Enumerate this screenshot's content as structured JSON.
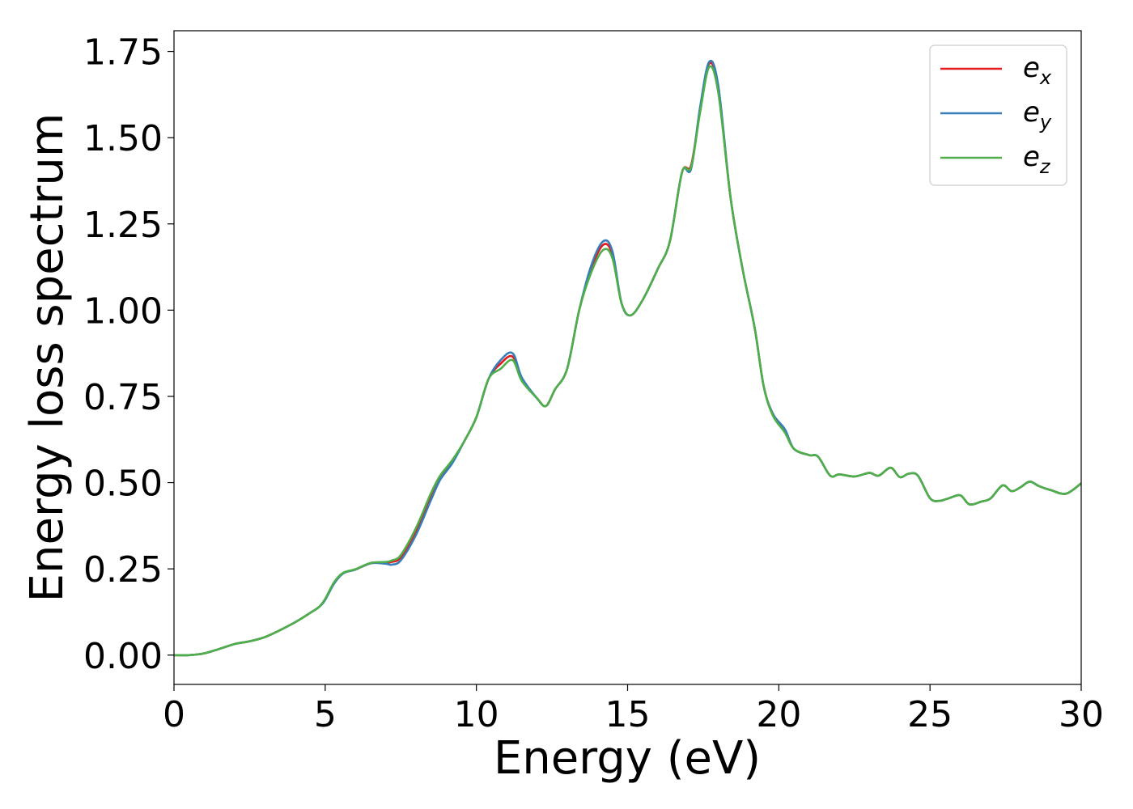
{
  "chart_data": {
    "type": "line",
    "title": "",
    "xlabel": "Energy (eV)",
    "ylabel": "Energy loss spectrum",
    "xlim": [
      0,
      30
    ],
    "ylim": [
      -0.085,
      1.81
    ],
    "xticks": [
      0,
      5,
      10,
      15,
      20,
      25,
      30
    ],
    "xtick_labels": [
      "0",
      "5",
      "10",
      "15",
      "20",
      "25",
      "30"
    ],
    "yticks": [
      0.0,
      0.25,
      0.5,
      0.75,
      1.0,
      1.25,
      1.5,
      1.75
    ],
    "ytick_labels": [
      "0.00",
      "0.25",
      "0.50",
      "0.75",
      "1.00",
      "1.25",
      "1.50",
      "1.75"
    ],
    "grid": false,
    "legend_position": "top-right",
    "x": [
      0,
      0.5,
      1,
      1.5,
      2,
      2.5,
      3,
      3.5,
      4,
      4.5,
      4.8,
      5,
      5.3,
      5.6,
      6,
      6.5,
      7,
      7.2,
      7.5,
      8,
      8.5,
      8.8,
      9.2,
      9.6,
      10,
      10.4,
      10.8,
      11.2,
      11.5,
      12,
      12.3,
      12.6,
      13,
      13.4,
      13.8,
      14.2,
      14.5,
      14.8,
      15.1,
      15.5,
      16,
      16.4,
      16.8,
      17.1,
      17.4,
      17.7,
      18,
      18.4,
      18.8,
      19.2,
      19.5,
      19.8,
      20.2,
      20.5,
      21,
      21.3,
      21.7,
      22,
      22.5,
      23,
      23.3,
      23.7,
      24,
      24.3,
      24.6,
      25,
      25.3,
      25.6,
      26,
      26.3,
      26.7,
      27,
      27.4,
      27.7,
      28,
      28.3,
      28.6,
      29,
      29.5,
      30
    ],
    "series": [
      {
        "name": "e",
        "subscript": "x",
        "color": "#e41a1c",
        "values": [
          0.0,
          0.0,
          0.005,
          0.018,
          0.032,
          0.04,
          0.052,
          0.072,
          0.095,
          0.122,
          0.14,
          0.162,
          0.21,
          0.238,
          0.248,
          0.266,
          0.268,
          0.27,
          0.284,
          0.36,
          0.46,
          0.515,
          0.56,
          0.62,
          0.69,
          0.8,
          0.845,
          0.865,
          0.8,
          0.745,
          0.722,
          0.77,
          0.83,
          1.0,
          1.12,
          1.19,
          1.16,
          1.02,
          0.985,
          1.03,
          1.12,
          1.2,
          1.4,
          1.42,
          1.58,
          1.715,
          1.64,
          1.33,
          1.12,
          0.95,
          0.78,
          0.7,
          0.65,
          0.598,
          0.58,
          0.575,
          0.52,
          0.524,
          0.518,
          0.528,
          0.52,
          0.543,
          0.516,
          0.526,
          0.52,
          0.455,
          0.447,
          0.454,
          0.463,
          0.437,
          0.445,
          0.454,
          0.492,
          0.475,
          0.487,
          0.503,
          0.49,
          0.478,
          0.468,
          0.498
        ]
      },
      {
        "name": "e",
        "subscript": "y",
        "color": "#377eb8",
        "values": [
          0.0,
          0.0,
          0.005,
          0.018,
          0.032,
          0.04,
          0.052,
          0.072,
          0.095,
          0.122,
          0.14,
          0.16,
          0.208,
          0.237,
          0.248,
          0.266,
          0.265,
          0.262,
          0.275,
          0.348,
          0.45,
          0.508,
          0.556,
          0.62,
          0.69,
          0.8,
          0.855,
          0.875,
          0.805,
          0.745,
          0.722,
          0.77,
          0.83,
          1.0,
          1.13,
          1.2,
          1.17,
          1.02,
          0.985,
          1.03,
          1.12,
          1.2,
          1.4,
          1.41,
          1.59,
          1.72,
          1.65,
          1.33,
          1.12,
          0.95,
          0.78,
          0.7,
          0.655,
          0.598,
          0.58,
          0.575,
          0.52,
          0.524,
          0.518,
          0.528,
          0.52,
          0.543,
          0.516,
          0.526,
          0.52,
          0.455,
          0.447,
          0.454,
          0.463,
          0.437,
          0.445,
          0.454,
          0.492,
          0.475,
          0.487,
          0.503,
          0.49,
          0.478,
          0.468,
          0.498
        ]
      },
      {
        "name": "e",
        "subscript": "z",
        "color": "#4daf4a",
        "values": [
          0.0,
          0.0,
          0.005,
          0.018,
          0.032,
          0.04,
          0.052,
          0.072,
          0.095,
          0.122,
          0.14,
          0.163,
          0.212,
          0.239,
          0.249,
          0.267,
          0.27,
          0.274,
          0.29,
          0.368,
          0.47,
          0.52,
          0.565,
          0.62,
          0.69,
          0.8,
          0.83,
          0.855,
          0.795,
          0.745,
          0.722,
          0.77,
          0.83,
          1.0,
          1.11,
          1.175,
          1.15,
          1.02,
          0.985,
          1.03,
          1.12,
          1.2,
          1.4,
          1.415,
          1.575,
          1.705,
          1.63,
          1.33,
          1.12,
          0.95,
          0.78,
          0.695,
          0.645,
          0.598,
          0.58,
          0.575,
          0.52,
          0.524,
          0.518,
          0.528,
          0.52,
          0.543,
          0.516,
          0.526,
          0.52,
          0.455,
          0.447,
          0.454,
          0.463,
          0.437,
          0.445,
          0.454,
          0.492,
          0.475,
          0.487,
          0.503,
          0.49,
          0.478,
          0.468,
          0.498
        ]
      }
    ]
  }
}
